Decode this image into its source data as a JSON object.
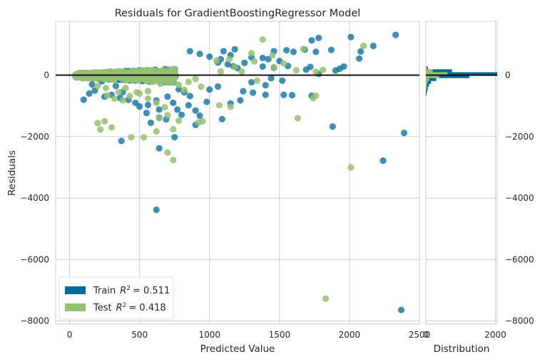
{
  "chart_data": [
    {
      "type": "scatter",
      "title": "Residuals for GradientBoostingRegressor Model",
      "xlabel": "Predicted Value",
      "ylabel": "Residuals",
      "xlim": [
        -100,
        2500
      ],
      "ylim": [
        -8100,
        1750
      ],
      "x_ticks": [
        0,
        500,
        1000,
        1500,
        2000,
        2500
      ],
      "x_tick_labels": [
        "0",
        "500",
        "1000",
        "1500",
        "2000",
        "2500"
      ],
      "y_ticks": [
        -8000,
        -6000,
        -4000,
        -2000,
        0
      ],
      "y_tick_labels": [
        "−8000",
        "−6000",
        "−4000",
        "−2000",
        "0"
      ],
      "reference_line": 0,
      "grid": true,
      "legend_position": "bottom-left",
      "colors": {
        "train": "#006a98",
        "test": "#96c072",
        "zero_line": "#111111",
        "grid": "#cccccc"
      },
      "series": [
        {
          "name": "Train",
          "legend_label": "Train",
          "r2_label": "R",
          "r2_value": "= 0.511",
          "points": [
            [
              2330,
              1310
            ],
            [
              1780,
              1210
            ],
            [
              2010,
              1240
            ],
            [
              1730,
              1130
            ],
            [
              2170,
              950
            ],
            [
              1680,
              830
            ],
            [
              1550,
              810
            ],
            [
              1600,
              760
            ],
            [
              1460,
              780
            ],
            [
              1760,
              760
            ],
            [
              1870,
              820
            ],
            [
              2070,
              540
            ],
            [
              2080,
              770
            ],
            [
              1180,
              840
            ],
            [
              1100,
              780
            ],
            [
              1150,
              650
            ],
            [
              1300,
              580
            ],
            [
              1380,
              560
            ],
            [
              1420,
              520
            ],
            [
              1500,
              460
            ],
            [
              1250,
              400
            ],
            [
              1560,
              300
            ],
            [
              1380,
              280
            ],
            [
              1460,
              240
            ],
            [
              1690,
              180
            ],
            [
              1720,
              270
            ],
            [
              1930,
              210
            ],
            [
              1960,
              280
            ],
            [
              1900,
              150
            ],
            [
              1780,
              40
            ],
            [
              860,
              780
            ],
            [
              930,
              690
            ],
            [
              1000,
              600
            ],
            [
              1080,
              520
            ],
            [
              1060,
              410
            ],
            [
              1130,
              350
            ],
            [
              1170,
              290
            ],
            [
              1200,
              230
            ],
            [
              1300,
              -230
            ],
            [
              1440,
              -100
            ],
            [
              1520,
              -180
            ],
            [
              1400,
              -330
            ],
            [
              1240,
              -520
            ],
            [
              1060,
              -370
            ],
            [
              1000,
              -470
            ],
            [
              1310,
              -570
            ],
            [
              1400,
              -640
            ],
            [
              1530,
              -640
            ],
            [
              1590,
              -650
            ],
            [
              1730,
              -670
            ],
            [
              1220,
              -820
            ],
            [
              1150,
              -920
            ],
            [
              980,
              -870
            ],
            [
              900,
              -1150
            ],
            [
              930,
              -1320
            ],
            [
              1090,
              -1430
            ],
            [
              1880,
              -1670
            ],
            [
              2390,
              -1880
            ],
            [
              2240,
              -2780
            ],
            [
              2370,
              -7640
            ],
            [
              780,
              -460
            ],
            [
              820,
              -560
            ],
            [
              860,
              -680
            ],
            [
              700,
              -700
            ],
            [
              620,
              -820
            ],
            [
              740,
              -900
            ],
            [
              850,
              -980
            ],
            [
              560,
              -970
            ],
            [
              500,
              -1020
            ],
            [
              640,
              -1120
            ],
            [
              770,
              -1120
            ],
            [
              800,
              -1290
            ],
            [
              640,
              -1380
            ],
            [
              690,
              -1440
            ],
            [
              550,
              -1230
            ],
            [
              580,
              -1550
            ],
            [
              900,
              -1620
            ],
            [
              750,
              -2020
            ],
            [
              370,
              -2140
            ],
            [
              640,
              -2380
            ],
            [
              620,
              -4380
            ],
            [
              100,
              -800
            ],
            [
              140,
              -600
            ],
            [
              180,
              -500
            ],
            [
              250,
              -700
            ],
            [
              300,
              -640
            ],
            [
              360,
              -740
            ],
            [
              420,
              -800
            ],
            [
              470,
              -900
            ],
            [
              160,
              -300
            ],
            [
              230,
              -200
            ],
            [
              330,
              -350
            ],
            [
              380,
              -550
            ]
          ]
        },
        {
          "name": "Test",
          "legend_label": "Test",
          "r2_label": "R",
          "r2_value": "= 0.418",
          "points": [
            [
              1380,
              1160
            ],
            [
              2100,
              950
            ],
            [
              1670,
              850
            ],
            [
              1300,
              710
            ],
            [
              1450,
              640
            ],
            [
              1530,
              380
            ],
            [
              1320,
              450
            ],
            [
              1140,
              520
            ],
            [
              1050,
              480
            ],
            [
              1180,
              270
            ],
            [
              1460,
              260
            ],
            [
              1620,
              160
            ],
            [
              1810,
              170
            ],
            [
              1760,
              110
            ],
            [
              1230,
              120
            ],
            [
              1080,
              120
            ],
            [
              1340,
              -180
            ],
            [
              1760,
              -670
            ],
            [
              1740,
              -750
            ],
            [
              1070,
              -980
            ],
            [
              1150,
              -1030
            ],
            [
              950,
              -1500
            ],
            [
              1630,
              -1400
            ],
            [
              920,
              -1540
            ],
            [
              780,
              -1480
            ],
            [
              700,
              -1300
            ],
            [
              640,
              -1400
            ],
            [
              740,
              -1760
            ],
            [
              620,
              -1830
            ],
            [
              530,
              -2020
            ],
            [
              700,
              -2520
            ],
            [
              440,
              -2020
            ],
            [
              740,
              -2760
            ],
            [
              220,
              -1770
            ],
            [
              300,
              -1700
            ],
            [
              200,
              -1560
            ],
            [
              250,
              -1500
            ],
            [
              2010,
              -3000
            ],
            [
              1830,
              -7270
            ],
            [
              500,
              -600
            ],
            [
              560,
              -760
            ],
            [
              620,
              -900
            ],
            [
              680,
              -1040
            ],
            [
              430,
              -680
            ],
            [
              380,
              -820
            ],
            [
              320,
              -760
            ],
            [
              270,
              -660
            ],
            [
              560,
              -520
            ],
            [
              480,
              -560
            ],
            [
              400,
              -420
            ],
            [
              350,
              -550
            ],
            [
              260,
              -420
            ],
            [
              200,
              -350
            ],
            [
              650,
              -280
            ],
            [
              720,
              -150
            ],
            [
              780,
              -320
            ],
            [
              850,
              -220
            ],
            [
              900,
              -120
            ],
            [
              820,
              -480
            ],
            [
              940,
              -380
            ]
          ]
        }
      ]
    },
    {
      "type": "histogram",
      "xlabel": "Distribution",
      "xlim": [
        0,
        2050
      ],
      "x_ticks": [
        0,
        2000
      ],
      "x_tick_labels": [
        "0",
        "2000"
      ],
      "ylim": [
        -8100,
        1750
      ],
      "y_ticks": [
        -8000,
        -6000,
        -4000,
        -2000,
        0
      ],
      "y_tick_labels": [
        "−8000",
        "−6000",
        "−4000",
        "−2000",
        "0"
      ],
      "bin_width": 95,
      "train_bins": [
        {
          "y0": 190,
          "count": 60
        },
        {
          "y0": 95,
          "count": 750
        },
        {
          "y0": 0,
          "count": 2050
        },
        {
          "y0": -95,
          "count": 1250
        },
        {
          "y0": -190,
          "count": 300
        },
        {
          "y0": -285,
          "count": 150
        },
        {
          "y0": -380,
          "count": 90
        },
        {
          "y0": -475,
          "count": 55
        },
        {
          "y0": -570,
          "count": 35
        },
        {
          "y0": -665,
          "count": 20
        }
      ],
      "test_bins": [
        {
          "y0": 190,
          "count": 30
        },
        {
          "y0": 95,
          "count": 200
        },
        {
          "y0": 0,
          "count": 620
        },
        {
          "y0": -95,
          "count": 380
        },
        {
          "y0": -190,
          "count": 100
        },
        {
          "y0": -285,
          "count": 50
        },
        {
          "y0": -380,
          "count": 30
        },
        {
          "y0": -475,
          "count": 20
        }
      ]
    }
  ]
}
